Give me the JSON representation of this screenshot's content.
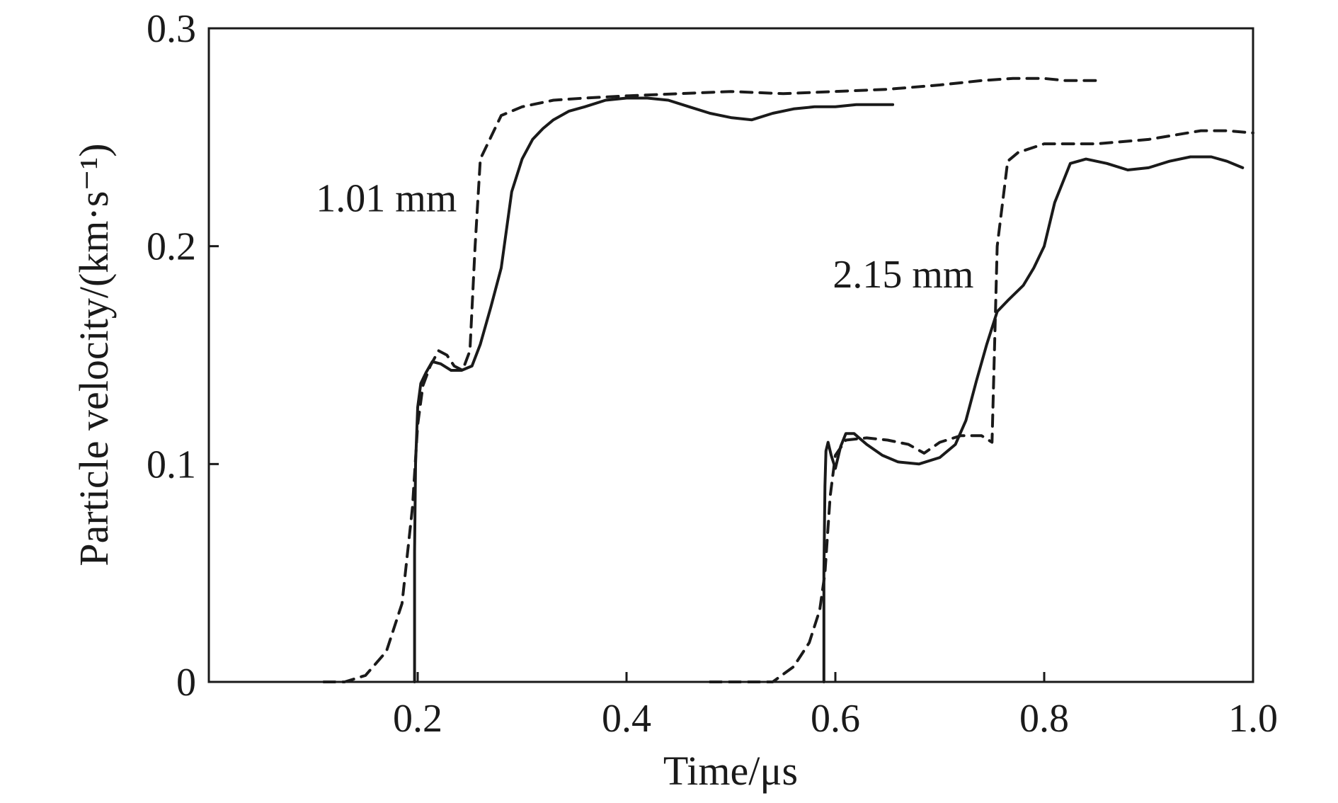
{
  "chart_data": {
    "type": "line",
    "title": "",
    "xlabel": "Time/μs",
    "ylabel": "Particle velocity/(km·s⁻¹)",
    "xlim": [
      0.0,
      1.0
    ],
    "ylim": [
      0.0,
      0.3
    ],
    "xticks": [
      {
        "value": 0.2,
        "label": "0.2"
      },
      {
        "value": 0.4,
        "label": "0.4"
      },
      {
        "value": 0.6,
        "label": "0.6"
      },
      {
        "value": 0.8,
        "label": "0.8"
      },
      {
        "value": 1.0,
        "label": "1.0"
      }
    ],
    "yticks": [
      {
        "value": 0.0,
        "label": "0"
      },
      {
        "value": 0.1,
        "label": "0.1"
      },
      {
        "value": 0.2,
        "label": "0.2"
      },
      {
        "value": 0.3,
        "label": "0.3"
      }
    ],
    "grid": false,
    "annotations": [
      {
        "text": "1.01 mm",
        "x": 0.17,
        "y": 0.216
      },
      {
        "text": "2.15 mm",
        "x": 0.665,
        "y": 0.181
      }
    ],
    "series": [
      {
        "style": "solid",
        "x": [
          0.197,
          0.197,
          0.198,
          0.2,
          0.203,
          0.208,
          0.214,
          0.222,
          0.232,
          0.242,
          0.252,
          0.26,
          0.27,
          0.28,
          0.29,
          0.3,
          0.31,
          0.32,
          0.33,
          0.345,
          0.36,
          0.38,
          0.4,
          0.42,
          0.44,
          0.46,
          0.48,
          0.5,
          0.52,
          0.54,
          0.56,
          0.58,
          0.6,
          0.62,
          0.64,
          0.655
        ],
        "y": [
          0.0,
          0.06,
          0.1,
          0.126,
          0.137,
          0.142,
          0.147,
          0.146,
          0.143,
          0.143,
          0.145,
          0.155,
          0.172,
          0.19,
          0.225,
          0.24,
          0.249,
          0.254,
          0.258,
          0.262,
          0.264,
          0.267,
          0.268,
          0.268,
          0.267,
          0.264,
          0.261,
          0.259,
          0.258,
          0.261,
          0.263,
          0.264,
          0.264,
          0.265,
          0.265,
          0.265
        ]
      },
      {
        "style": "dashed",
        "x": [
          0.11,
          0.13,
          0.15,
          0.17,
          0.185,
          0.195,
          0.2,
          0.205,
          0.212,
          0.22,
          0.228,
          0.235,
          0.243,
          0.25,
          0.255,
          0.26,
          0.27,
          0.28,
          0.3,
          0.33,
          0.36,
          0.4,
          0.45,
          0.5,
          0.55,
          0.6,
          0.65,
          0.7,
          0.74,
          0.77,
          0.8,
          0.82,
          0.85
        ],
        "y": [
          0.0,
          0.0,
          0.003,
          0.014,
          0.036,
          0.08,
          0.118,
          0.136,
          0.145,
          0.152,
          0.15,
          0.145,
          0.143,
          0.152,
          0.2,
          0.24,
          0.25,
          0.26,
          0.264,
          0.267,
          0.268,
          0.269,
          0.27,
          0.271,
          0.27,
          0.271,
          0.272,
          0.274,
          0.276,
          0.277,
          0.277,
          0.276,
          0.276
        ]
      },
      {
        "style": "solid",
        "x": [
          0.589,
          0.589,
          0.59,
          0.591,
          0.593,
          0.596,
          0.6,
          0.605,
          0.61,
          0.618,
          0.63,
          0.645,
          0.66,
          0.68,
          0.7,
          0.715,
          0.725,
          0.735,
          0.745,
          0.755,
          0.765,
          0.78,
          0.79,
          0.8,
          0.81,
          0.825,
          0.84,
          0.86,
          0.88,
          0.9,
          0.92,
          0.94,
          0.96,
          0.975,
          0.99
        ],
        "y": [
          0.0,
          0.05,
          0.09,
          0.106,
          0.11,
          0.104,
          0.098,
          0.108,
          0.114,
          0.114,
          0.109,
          0.104,
          0.101,
          0.1,
          0.103,
          0.109,
          0.12,
          0.138,
          0.155,
          0.17,
          0.175,
          0.182,
          0.19,
          0.2,
          0.22,
          0.238,
          0.24,
          0.238,
          0.235,
          0.236,
          0.239,
          0.241,
          0.241,
          0.239,
          0.236
        ]
      },
      {
        "style": "dashed",
        "x": [
          0.48,
          0.5,
          0.52,
          0.54,
          0.56,
          0.575,
          0.585,
          0.59,
          0.595,
          0.6,
          0.61,
          0.63,
          0.65,
          0.67,
          0.685,
          0.7,
          0.72,
          0.74,
          0.75,
          0.755,
          0.765,
          0.775,
          0.8,
          0.85,
          0.9,
          0.95,
          0.975,
          1.0
        ],
        "y": [
          0.0,
          0.0,
          0.0,
          0.0,
          0.007,
          0.018,
          0.033,
          0.05,
          0.085,
          0.104,
          0.111,
          0.112,
          0.111,
          0.109,
          0.105,
          0.11,
          0.113,
          0.113,
          0.11,
          0.2,
          0.239,
          0.243,
          0.247,
          0.247,
          0.249,
          0.253,
          0.253,
          0.252
        ]
      }
    ]
  }
}
